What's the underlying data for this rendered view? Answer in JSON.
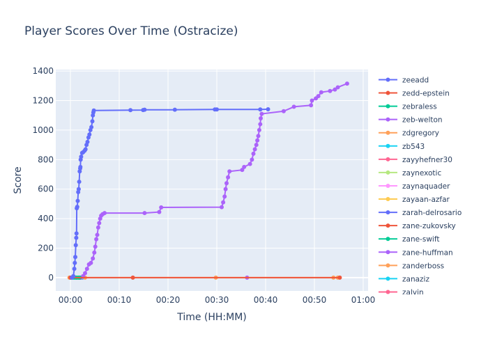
{
  "chart_data": {
    "type": "line",
    "title": "Player Scores Over Time (Ostracize)",
    "xlabel": "Time (HH:MM)",
    "ylabel": "Score",
    "x_units": "minutes",
    "x_tick_values": [
      0,
      10,
      20,
      30,
      40,
      50,
      60
    ],
    "x_tick_labels": [
      "00:00",
      "00:10",
      "00:20",
      "00:30",
      "00:40",
      "00:50",
      "01:00"
    ],
    "xlim": [
      -3,
      61
    ],
    "y_tick_values": [
      0,
      200,
      400,
      600,
      800,
      1000,
      1200,
      1400
    ],
    "y_tick_labels": [
      "0",
      "200",
      "400",
      "600",
      "800",
      "1000",
      "1200",
      "1400"
    ],
    "ylim": [
      -90,
      1410
    ],
    "grid": true,
    "legend_position": "right",
    "series": [
      {
        "name": "zeeadd",
        "color": "#636efa",
        "x": [
          0.3,
          0.6,
          0.8,
          0.9,
          1.0,
          1.1,
          1.2,
          1.25,
          1.3,
          1.4,
          1.5,
          1.6,
          1.7,
          1.8,
          1.9,
          2.0,
          2.05,
          2.1,
          2.2,
          2.4,
          2.6,
          2.9,
          3.1,
          3.3,
          3.5,
          3.7,
          3.9,
          4.1,
          4.3,
          4.5,
          4.6,
          4.7,
          4.8,
          12.3,
          14.9,
          15.2,
          21.4,
          29.6,
          30.0,
          38.9,
          40.5
        ],
        "y": [
          0,
          10,
          60,
          100,
          140,
          220,
          270,
          300,
          470,
          480,
          520,
          580,
          600,
          650,
          720,
          740,
          750,
          800,
          820,
          845,
          850,
          860,
          870,
          900,
          920,
          950,
          970,
          1000,
          1020,
          1060,
          1100,
          1120,
          1133,
          1135,
          1136,
          1138,
          1138,
          1140,
          1140,
          1140,
          1141
        ]
      },
      {
        "name": "zedd-epstein",
        "color": "#ef553b",
        "x": [
          0.0,
          12.8,
          55.2
        ],
        "y": [
          0,
          0,
          0
        ]
      },
      {
        "name": "zebraless",
        "color": "#00cc96",
        "x": [
          0.8,
          1.2,
          1.6,
          1.9
        ],
        "y": [
          0,
          0,
          0,
          0
        ]
      },
      {
        "name": "zeb-welton",
        "color": "#ab63fa",
        "x": [
          2.2,
          2.6,
          3.0,
          3.4,
          3.8,
          4.2,
          4.6,
          4.9,
          5.1,
          5.3,
          5.5,
          5.7,
          5.9,
          6.1,
          6.3,
          6.6,
          7.0,
          15.2,
          18.2,
          18.6,
          31.0,
          31.3,
          31.6,
          31.8,
          32.0,
          32.3,
          32.6,
          35.2,
          35.6,
          36.8,
          37.2,
          37.5,
          37.8,
          38.1,
          38.3,
          38.5,
          38.7,
          38.9,
          39.0,
          39.2,
          43.7,
          45.8,
          49.3,
          49.5,
          50.3,
          50.8,
          51.4,
          53.2,
          54.2,
          54.8,
          56.7
        ],
        "y": [
          0,
          10,
          30,
          60,
          90,
          100,
          130,
          170,
          210,
          260,
          290,
          340,
          370,
          400,
          420,
          430,
          438,
          438,
          445,
          476,
          478,
          510,
          550,
          600,
          640,
          680,
          720,
          730,
          750,
          770,
          800,
          840,
          870,
          900,
          930,
          960,
          1000,
          1040,
          1080,
          1110,
          1128,
          1158,
          1168,
          1200,
          1215,
          1230,
          1256,
          1265,
          1275,
          1290,
          1315
        ]
      },
      {
        "name": "zdgregory",
        "color": "#ffa15a",
        "x": [
          -0.2,
          3.0,
          29.8,
          53.9,
          54.8
        ],
        "y": [
          0,
          0,
          0,
          0,
          0
        ]
      },
      {
        "name": "zb543",
        "color": "#19d3f3",
        "x": [
          0.5,
          2.5
        ],
        "y": [
          0,
          0
        ]
      },
      {
        "name": "zayyhefner30",
        "color": "#ff6692",
        "x": [
          0.4,
          2.2
        ],
        "y": [
          0,
          0
        ]
      },
      {
        "name": "zaynexotic",
        "color": "#b6e880",
        "x": [
          0.6,
          1.0
        ],
        "y": [
          0,
          0
        ]
      },
      {
        "name": "zaynaquader",
        "color": "#ff97ff",
        "x": [
          0.7,
          1.5
        ],
        "y": [
          0,
          0
        ]
      },
      {
        "name": "zayaan-azfar",
        "color": "#fecb52",
        "x": [
          0.9,
          1.7
        ],
        "y": [
          0,
          0
        ]
      },
      {
        "name": "zarah-delrosario",
        "color": "#636efa",
        "x": [
          1.0,
          2.0
        ],
        "y": [
          0,
          0
        ]
      },
      {
        "name": "zane-zukovsky",
        "color": "#ef553b",
        "x": [
          1.1,
          1.8
        ],
        "y": [
          0,
          0
        ]
      },
      {
        "name": "zane-swift",
        "color": "#00cc96",
        "x": [
          1.3,
          1.6
        ],
        "y": [
          0,
          0
        ]
      },
      {
        "name": "zane-huffman",
        "color": "#ab63fa",
        "x": [
          36.2
        ],
        "y": [
          0
        ]
      },
      {
        "name": "zanderboss",
        "color": "#ffa15a",
        "x": [
          1.4,
          2.1
        ],
        "y": [
          0,
          0
        ]
      },
      {
        "name": "zanaziz",
        "color": "#19d3f3",
        "x": [
          0.2,
          1.9
        ],
        "y": [
          0,
          0
        ]
      },
      {
        "name": "zalvin",
        "color": "#ff6692",
        "x": [
          0.1,
          1.2
        ],
        "y": [
          0,
          0
        ]
      }
    ]
  }
}
